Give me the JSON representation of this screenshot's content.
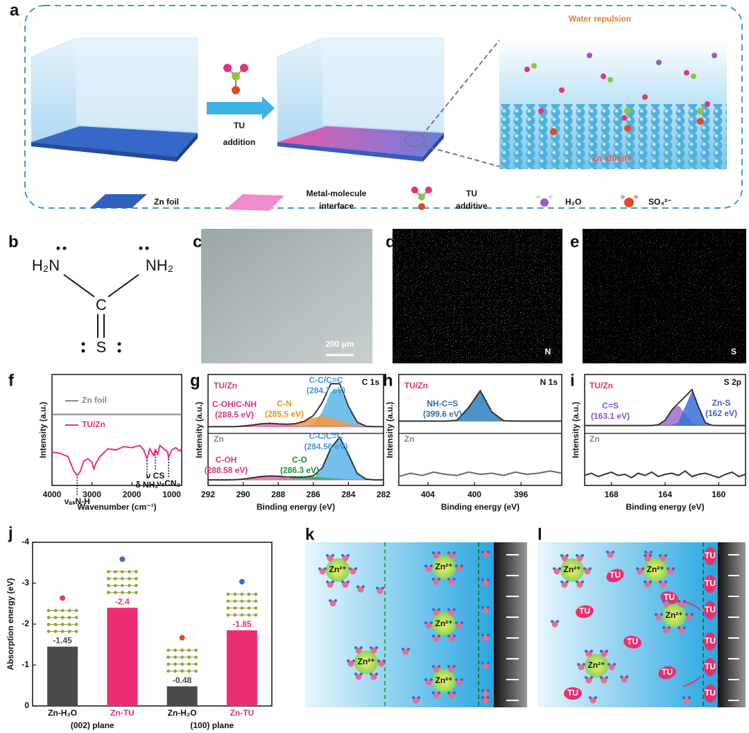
{
  "panel_a": {
    "panel_label": "a",
    "water_repulsion": "Water repulsion",
    "arrow_label": [
      "TU",
      "addition"
    ],
    "zn_affinity": "Zn affinity",
    "legend": [
      {
        "label": [
          "Zn foil"
        ]
      },
      {
        "label": [
          "Metal-molecule",
          "interface"
        ]
      },
      {
        "label": [
          "TU",
          "additive"
        ]
      },
      {
        "label": [
          "H₂O"
        ]
      },
      {
        "label": [
          "SO₄²⁻"
        ]
      }
    ]
  },
  "panel_b": {
    "panel_label": "b",
    "atoms": [
      "H₂N",
      "NH₂",
      "C",
      "S"
    ]
  },
  "panel_c": {
    "panel_label": "c",
    "scale_bar": "200 μm"
  },
  "panel_d": {
    "panel_label": "d",
    "element": "N"
  },
  "panel_e": {
    "panel_label": "e",
    "element": "S"
  },
  "panel_k": {
    "panel_label": "k",
    "ion": "Zn²⁺"
  },
  "panel_l": {
    "panel_label": "l",
    "ion": "Zn²⁺",
    "additive": "TU"
  },
  "chart_data": [
    {
      "type": "line",
      "panel_label": "f",
      "xlabel": "Wavenumber (cm⁻¹)",
      "ylabel": "Intensity (a.u.)",
      "xlim": [
        4000,
        750
      ],
      "xticks": [
        4000,
        3000,
        2000,
        1000
      ],
      "ylim": [
        0,
        10
      ],
      "series": [
        {
          "name": "Zn foil",
          "color": "#888888",
          "x": [
            4000,
            750
          ],
          "values": [
            6.4,
            6.4
          ]
        },
        {
          "name": "TU/Zn",
          "color": "#e8317a",
          "x": [
            4000,
            3800,
            3600,
            3450,
            3370,
            3300,
            3200,
            3100,
            3000,
            2950,
            2900,
            2800,
            2600,
            2400,
            2200,
            2000,
            1800,
            1700,
            1620,
            1550,
            1500,
            1450,
            1410,
            1350,
            1300,
            1200,
            1100,
            1080,
            1000,
            900,
            800,
            750
          ],
          "values": [
            3.0,
            2.9,
            2.6,
            1.3,
            0.9,
            1.2,
            2.2,
            2.4,
            2.1,
            1.5,
            2.0,
            2.6,
            3.3,
            3.2,
            3.5,
            3.4,
            3.6,
            3.2,
            2.4,
            3.3,
            3.0,
            2.7,
            3.2,
            2.8,
            3.6,
            3.3,
            3.0,
            2.5,
            3.2,
            3.4,
            3.1,
            3.3
          ]
        }
      ],
      "annotations": [
        {
          "text": "νₐₛN-H",
          "x": 3370
        },
        {
          "text": "δ NH₂",
          "x": 1620
        },
        {
          "text": "ν CS",
          "x": 1410
        },
        {
          "text": "νₛCN₂",
          "x": 1080
        }
      ]
    },
    {
      "type": "line",
      "panel_label": "g",
      "core_level": "C 1s",
      "xlabel": "Binding energy (eV)",
      "ylabel": "Intensity (a.u.)",
      "xlim": [
        292,
        282
      ],
      "xticks": [
        292,
        290,
        288,
        286,
        284,
        282
      ],
      "ylim": [
        0,
        10
      ],
      "x": [
        292,
        291.5,
        291,
        290.5,
        290,
        289.5,
        289,
        288.5,
        288,
        287.5,
        287,
        286.5,
        286,
        285.5,
        285,
        284.5,
        284,
        283.5,
        283,
        282.5,
        282
      ],
      "series": [
        {
          "name": "TU/Zn",
          "color": "#333333",
          "label_color": "#e0317a",
          "values": [
            5.3,
            5.3,
            5.3,
            5.3,
            5.35,
            5.44,
            5.55,
            5.6,
            5.55,
            5.52,
            5.57,
            5.79,
            6.29,
            7.45,
            9.17,
            9.16,
            7.12,
            5.71,
            5.33,
            5.3,
            5.3
          ]
        },
        {
          "name": "C-C/C=C",
          "label": "(284.7 eV)",
          "color": "#5ab4ea",
          "label_color": "#3a9ad9",
          "filled": true,
          "values": [
            5.3,
            5.3,
            5.3,
            5.3,
            5.3,
            5.3,
            5.3,
            5.3,
            5.3,
            5.3,
            5.3,
            5.3,
            5.52,
            6.55,
            8.4,
            8.67,
            6.9,
            5.63,
            5.33,
            5.3,
            5.3
          ]
        },
        {
          "name": "C-N",
          "label": "(285.5 eV)",
          "color": "#f39a3a",
          "label_color": "#f0901e",
          "filled": true,
          "values": [
            5.3,
            5.3,
            5.3,
            5.3,
            5.3,
            5.3,
            5.3,
            5.3,
            5.3,
            5.38,
            5.52,
            5.79,
            6.07,
            6.2,
            6.07,
            5.79,
            5.52,
            5.38,
            5.3,
            5.3,
            5.3
          ]
        },
        {
          "name": "C-OH/C-NH",
          "label": "(288.5 eV)",
          "color": "#e86aa5",
          "label_color": "#e0317a",
          "filled": true,
          "values": [
            5.3,
            5.3,
            5.3,
            5.3,
            5.35,
            5.44,
            5.55,
            5.6,
            5.55,
            5.44,
            5.35,
            5.3,
            5.3,
            5.3,
            5.3,
            5.3,
            5.3,
            5.3,
            5.3,
            5.3,
            5.3
          ]
        },
        {
          "name": "Zn",
          "color": "#333333",
          "label_color": "#888888",
          "values": [
            0.5,
            0.5,
            0.5,
            0.52,
            0.57,
            0.68,
            0.8,
            0.85,
            0.83,
            0.76,
            0.75,
            0.75,
            0.86,
            1.56,
            3.37,
            4.35,
            2.79,
            1.09,
            0.57,
            0.5,
            0.5
          ]
        },
        {
          "name": "C-C/C=C",
          "label": "(284.56 eV)",
          "color": "#5ab4ea",
          "label_color": "#3a9ad9",
          "filled": true,
          "values": [
            0.5,
            0.5,
            0.5,
            0.5,
            0.5,
            0.5,
            0.5,
            0.5,
            0.5,
            0.5,
            0.5,
            0.5,
            0.62,
            1.38,
            3.26,
            4.3,
            2.77,
            1.09,
            0.57,
            0.5,
            0.5
          ]
        },
        {
          "name": "C-O",
          "label": "(286.3 eV)",
          "color": "#3aa35a",
          "label_color": "#1e8a3a",
          "filled": true,
          "values": [
            0.5,
            0.5,
            0.5,
            0.5,
            0.5,
            0.5,
            0.5,
            0.5,
            0.56,
            0.62,
            0.7,
            0.75,
            0.74,
            0.68,
            0.61,
            0.55,
            0.52,
            0.5,
            0.5,
            0.5,
            0.5
          ]
        },
        {
          "name": "C-OH",
          "label": "(288.58 eV)",
          "color": "#e86aa5",
          "label_color": "#e0317a",
          "filled": true,
          "values": [
            0.5,
            0.5,
            0.5,
            0.52,
            0.57,
            0.68,
            0.8,
            0.85,
            0.77,
            0.64,
            0.55,
            0.5,
            0.5,
            0.5,
            0.5,
            0.5,
            0.5,
            0.5,
            0.5,
            0.5,
            0.5
          ]
        }
      ]
    },
    {
      "type": "line",
      "panel_label": "h",
      "core_level": "N 1s",
      "xlabel": "Binding energy (eV)",
      "ylabel": "Intensity (a.u.)",
      "xlim": [
        406.5,
        392.5
      ],
      "xticks": [
        404,
        400,
        396
      ],
      "ylim": [
        0,
        10
      ],
      "x": [
        406.5,
        405.5,
        404.5,
        403.5,
        402.5,
        401.5,
        400.5,
        399.5,
        398.5,
        397.5,
        396.5,
        395.5,
        394.5,
        393.5,
        392.5
      ],
      "series": [
        {
          "name": "NH-C=S",
          "label": "(399.6 eV)",
          "color": "#2e7fc0",
          "label_color": "#2a6fa8",
          "filled": true,
          "values": [
            5.8,
            5.8,
            5.8,
            5.8,
            5.8,
            5.87,
            7.02,
            8.54,
            6.62,
            5.83,
            5.8,
            5.8,
            5.8,
            5.8,
            5.8
          ]
        },
        {
          "name": "TU/Zn",
          "color": "#333333",
          "label_color": "#e0317a",
          "values": [
            5.8,
            5.8,
            5.8,
            5.8,
            5.8,
            5.87,
            7.02,
            8.54,
            6.62,
            5.83,
            5.8,
            5.8,
            5.8,
            5.8,
            5.8
          ]
        },
        {
          "name": "Zn",
          "color": "#666666",
          "label_color": "#888888",
          "values": [
            0.8,
            1.1,
            0.9,
            1.2,
            1.0,
            0.9,
            1.2,
            1.0,
            1.1,
            0.9,
            1.2,
            1.0,
            1.1,
            1.3,
            1.1
          ]
        }
      ]
    },
    {
      "type": "line",
      "panel_label": "i",
      "core_level": "S 2p",
      "xlabel": "Binding energy (eV)",
      "ylabel": "Intensity (a.u.)",
      "xlim": [
        170,
        158
      ],
      "xticks": [
        168,
        164,
        160
      ],
      "ylim": [
        0,
        10
      ],
      "x": [
        170,
        169.5,
        169,
        168.5,
        168,
        167.5,
        167,
        166.5,
        166,
        165.5,
        165,
        164.5,
        164,
        163.5,
        163,
        162.5,
        162,
        161.5,
        161,
        160.5,
        160,
        159.5,
        159,
        158.5,
        158
      ],
      "series": [
        {
          "name": "C=S",
          "label": "(163.1 eV)",
          "color": "#9b6fd0",
          "label_color": "#8a4fc8",
          "filled": true,
          "values": [
            5.4,
            5.4,
            5.4,
            5.4,
            5.4,
            5.4,
            5.4,
            5.4,
            5.4,
            5.4,
            5.4,
            5.47,
            5.87,
            6.79,
            7.17,
            6.39,
            5.64,
            5.43,
            5.4,
            5.4,
            5.4,
            5.4,
            5.4,
            5.4,
            5.4
          ]
        },
        {
          "name": "Zn-S",
          "label": "(162 eV)",
          "color": "#3b6fd8",
          "label_color": "#3b5fc8",
          "filled": true,
          "values": [
            5.4,
            5.4,
            5.4,
            5.4,
            5.4,
            5.4,
            5.4,
            5.4,
            5.4,
            5.4,
            5.4,
            5.4,
            5.4,
            5.41,
            5.65,
            7.02,
            8.4,
            7.02,
            5.65,
            5.41,
            5.4,
            5.4,
            5.4,
            5.4,
            5.4
          ]
        },
        {
          "name": "TU/Zn",
          "color": "#333333",
          "label_color": "#e0317a",
          "values": [
            5.4,
            5.4,
            5.4,
            5.4,
            5.4,
            5.4,
            5.4,
            5.4,
            5.4,
            5.4,
            5.4,
            5.47,
            5.87,
            6.8,
            7.42,
            8.01,
            8.64,
            7.05,
            5.65,
            5.41,
            5.4,
            5.4,
            5.4,
            5.4,
            5.4
          ]
        },
        {
          "name": "Zn",
          "color": "#333333",
          "label_color": "#888888",
          "values": [
            0.9,
            1.1,
            0.8,
            1.0,
            1.2,
            0.9,
            1.0,
            0.7,
            1.1,
            0.9,
            1.2,
            0.8,
            1.0,
            1.1,
            0.9,
            1.3,
            0.8,
            1.0,
            1.1,
            0.9,
            0.7,
            1.0,
            1.2,
            0.8,
            1.0
          ]
        }
      ]
    },
    {
      "type": "bar",
      "panel_label": "j",
      "ylabel": "Absorption energy (eV)",
      "categories": [
        "Zn-H₂O",
        "Zn-TU",
        "Zn-H₂O",
        "Zn-TU"
      ],
      "category_colors": [
        "#111111",
        "#e0317a",
        "#111111",
        "#e0317a"
      ],
      "groups": [
        "(002) plane",
        "(100) plane"
      ],
      "values": [
        -1.45,
        -2.4,
        -0.48,
        -1.85
      ],
      "colors": [
        "#4a4a4a",
        "#ec2d74",
        "#4a4a4a",
        "#ec2d74"
      ],
      "ylim": [
        0,
        -4
      ],
      "yticks": [
        0,
        -1,
        -2,
        -3,
        -4
      ]
    }
  ]
}
